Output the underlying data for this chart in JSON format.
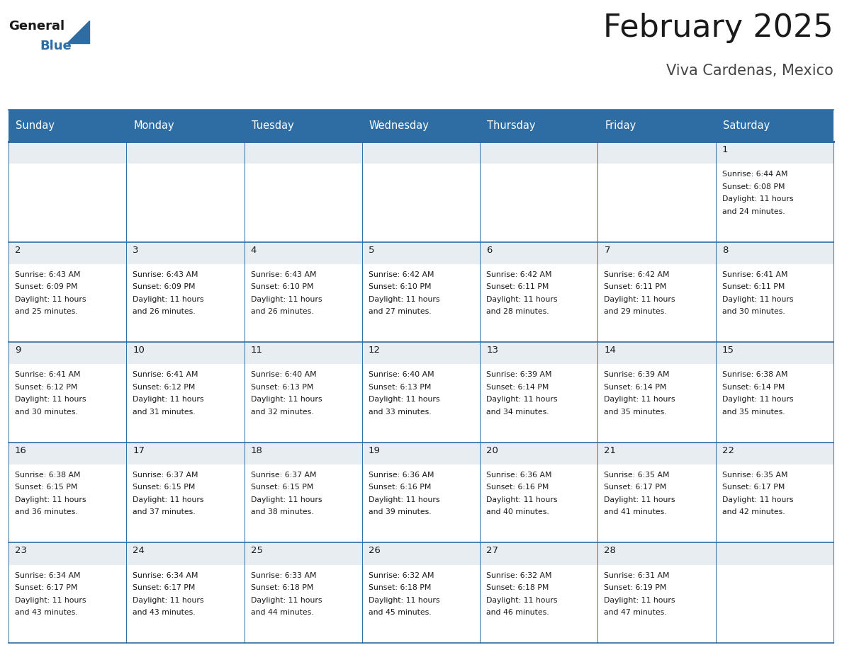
{
  "title": "February 2025",
  "subtitle": "Viva Cardenas, Mexico",
  "header_color": "#2E6DA4",
  "header_text_color": "#FFFFFF",
  "background_color": "#FFFFFF",
  "cell_top_bg": "#E8EDF2",
  "cell_body_bg": "#FFFFFF",
  "day_headers": [
    "Sunday",
    "Monday",
    "Tuesday",
    "Wednesday",
    "Thursday",
    "Friday",
    "Saturday"
  ],
  "days": [
    {
      "day": 1,
      "col": 6,
      "row": 0,
      "sunrise": "6:44 AM",
      "sunset": "6:08 PM",
      "daylight_a": "11 hours",
      "daylight_b": "and 24 minutes."
    },
    {
      "day": 2,
      "col": 0,
      "row": 1,
      "sunrise": "6:43 AM",
      "sunset": "6:09 PM",
      "daylight_a": "11 hours",
      "daylight_b": "and 25 minutes."
    },
    {
      "day": 3,
      "col": 1,
      "row": 1,
      "sunrise": "6:43 AM",
      "sunset": "6:09 PM",
      "daylight_a": "11 hours",
      "daylight_b": "and 26 minutes."
    },
    {
      "day": 4,
      "col": 2,
      "row": 1,
      "sunrise": "6:43 AM",
      "sunset": "6:10 PM",
      "daylight_a": "11 hours",
      "daylight_b": "and 26 minutes."
    },
    {
      "day": 5,
      "col": 3,
      "row": 1,
      "sunrise": "6:42 AM",
      "sunset": "6:10 PM",
      "daylight_a": "11 hours",
      "daylight_b": "and 27 minutes."
    },
    {
      "day": 6,
      "col": 4,
      "row": 1,
      "sunrise": "6:42 AM",
      "sunset": "6:11 PM",
      "daylight_a": "11 hours",
      "daylight_b": "and 28 minutes."
    },
    {
      "day": 7,
      "col": 5,
      "row": 1,
      "sunrise": "6:42 AM",
      "sunset": "6:11 PM",
      "daylight_a": "11 hours",
      "daylight_b": "and 29 minutes."
    },
    {
      "day": 8,
      "col": 6,
      "row": 1,
      "sunrise": "6:41 AM",
      "sunset": "6:11 PM",
      "daylight_a": "11 hours",
      "daylight_b": "and 30 minutes."
    },
    {
      "day": 9,
      "col": 0,
      "row": 2,
      "sunrise": "6:41 AM",
      "sunset": "6:12 PM",
      "daylight_a": "11 hours",
      "daylight_b": "and 30 minutes."
    },
    {
      "day": 10,
      "col": 1,
      "row": 2,
      "sunrise": "6:41 AM",
      "sunset": "6:12 PM",
      "daylight_a": "11 hours",
      "daylight_b": "and 31 minutes."
    },
    {
      "day": 11,
      "col": 2,
      "row": 2,
      "sunrise": "6:40 AM",
      "sunset": "6:13 PM",
      "daylight_a": "11 hours",
      "daylight_b": "and 32 minutes."
    },
    {
      "day": 12,
      "col": 3,
      "row": 2,
      "sunrise": "6:40 AM",
      "sunset": "6:13 PM",
      "daylight_a": "11 hours",
      "daylight_b": "and 33 minutes."
    },
    {
      "day": 13,
      "col": 4,
      "row": 2,
      "sunrise": "6:39 AM",
      "sunset": "6:14 PM",
      "daylight_a": "11 hours",
      "daylight_b": "and 34 minutes."
    },
    {
      "day": 14,
      "col": 5,
      "row": 2,
      "sunrise": "6:39 AM",
      "sunset": "6:14 PM",
      "daylight_a": "11 hours",
      "daylight_b": "and 35 minutes."
    },
    {
      "day": 15,
      "col": 6,
      "row": 2,
      "sunrise": "6:38 AM",
      "sunset": "6:14 PM",
      "daylight_a": "11 hours",
      "daylight_b": "and 35 minutes."
    },
    {
      "day": 16,
      "col": 0,
      "row": 3,
      "sunrise": "6:38 AM",
      "sunset": "6:15 PM",
      "daylight_a": "11 hours",
      "daylight_b": "and 36 minutes."
    },
    {
      "day": 17,
      "col": 1,
      "row": 3,
      "sunrise": "6:37 AM",
      "sunset": "6:15 PM",
      "daylight_a": "11 hours",
      "daylight_b": "and 37 minutes."
    },
    {
      "day": 18,
      "col": 2,
      "row": 3,
      "sunrise": "6:37 AM",
      "sunset": "6:15 PM",
      "daylight_a": "11 hours",
      "daylight_b": "and 38 minutes."
    },
    {
      "day": 19,
      "col": 3,
      "row": 3,
      "sunrise": "6:36 AM",
      "sunset": "6:16 PM",
      "daylight_a": "11 hours",
      "daylight_b": "and 39 minutes."
    },
    {
      "day": 20,
      "col": 4,
      "row": 3,
      "sunrise": "6:36 AM",
      "sunset": "6:16 PM",
      "daylight_a": "11 hours",
      "daylight_b": "and 40 minutes."
    },
    {
      "day": 21,
      "col": 5,
      "row": 3,
      "sunrise": "6:35 AM",
      "sunset": "6:17 PM",
      "daylight_a": "11 hours",
      "daylight_b": "and 41 minutes."
    },
    {
      "day": 22,
      "col": 6,
      "row": 3,
      "sunrise": "6:35 AM",
      "sunset": "6:17 PM",
      "daylight_a": "11 hours",
      "daylight_b": "and 42 minutes."
    },
    {
      "day": 23,
      "col": 0,
      "row": 4,
      "sunrise": "6:34 AM",
      "sunset": "6:17 PM",
      "daylight_a": "11 hours",
      "daylight_b": "and 43 minutes."
    },
    {
      "day": 24,
      "col": 1,
      "row": 4,
      "sunrise": "6:34 AM",
      "sunset": "6:17 PM",
      "daylight_a": "11 hours",
      "daylight_b": "and 43 minutes."
    },
    {
      "day": 25,
      "col": 2,
      "row": 4,
      "sunrise": "6:33 AM",
      "sunset": "6:18 PM",
      "daylight_a": "11 hours",
      "daylight_b": "and 44 minutes."
    },
    {
      "day": 26,
      "col": 3,
      "row": 4,
      "sunrise": "6:32 AM",
      "sunset": "6:18 PM",
      "daylight_a": "11 hours",
      "daylight_b": "and 45 minutes."
    },
    {
      "day": 27,
      "col": 4,
      "row": 4,
      "sunrise": "6:32 AM",
      "sunset": "6:18 PM",
      "daylight_a": "11 hours",
      "daylight_b": "and 46 minutes."
    },
    {
      "day": 28,
      "col": 5,
      "row": 4,
      "sunrise": "6:31 AM",
      "sunset": "6:19 PM",
      "daylight_a": "11 hours",
      "daylight_b": "and 47 minutes."
    }
  ],
  "num_rows": 5,
  "num_cols": 7,
  "header_font_size": 10.5,
  "day_num_font_size": 9.5,
  "cell_font_size": 7.8,
  "title_font_size": 32,
  "subtitle_font_size": 15,
  "line_color": "#2E6DA4",
  "text_color": "#1a1a1a",
  "logo_general_color": "#1a1a1a",
  "logo_blue_color": "#2E6DA4",
  "logo_triangle_color": "#2E6DA4"
}
